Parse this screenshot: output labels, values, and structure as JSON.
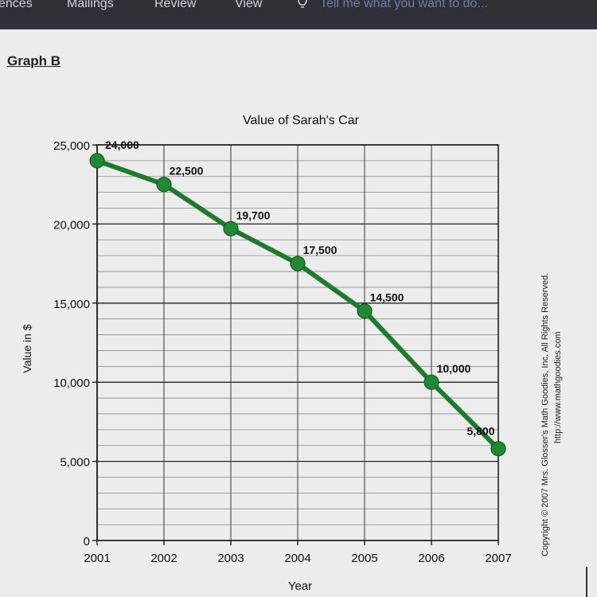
{
  "ribbon": {
    "tabs": [
      "ences",
      "Mailings",
      "Review",
      "View"
    ],
    "tell_me": "Tell me what you want to do..."
  },
  "document": {
    "heading": "Graph B"
  },
  "copyright": {
    "line1": "Copyright © 2007 Mrs. Glosser's Math Goodies, Inc. All Rights Reserved.",
    "line2": "http://www.mathgoodies.com"
  },
  "chart_data": {
    "type": "line",
    "title": "Value of Sarah's Car",
    "xlabel": "Year",
    "ylabel": "Value in $",
    "categories": [
      "2001",
      "2002",
      "2003",
      "2004",
      "2005",
      "2006",
      "2007"
    ],
    "values": [
      24000,
      22500,
      19700,
      17500,
      14500,
      10000,
      5800
    ],
    "data_labels": [
      "24,000",
      "22,500",
      "19,700",
      "17,500",
      "14,500",
      "10,000",
      "5,800"
    ],
    "yticks": [
      0,
      5000,
      10000,
      15000,
      20000,
      25000
    ],
    "ytick_labels": [
      "0",
      "5,000",
      "10,000",
      "15,000",
      "20,000",
      "25,000"
    ],
    "ylim": [
      0,
      25000
    ],
    "grid": true,
    "minor_grid_step": 1000,
    "line_color": "#1f7a2e",
    "marker_color": "#1f8a33"
  }
}
